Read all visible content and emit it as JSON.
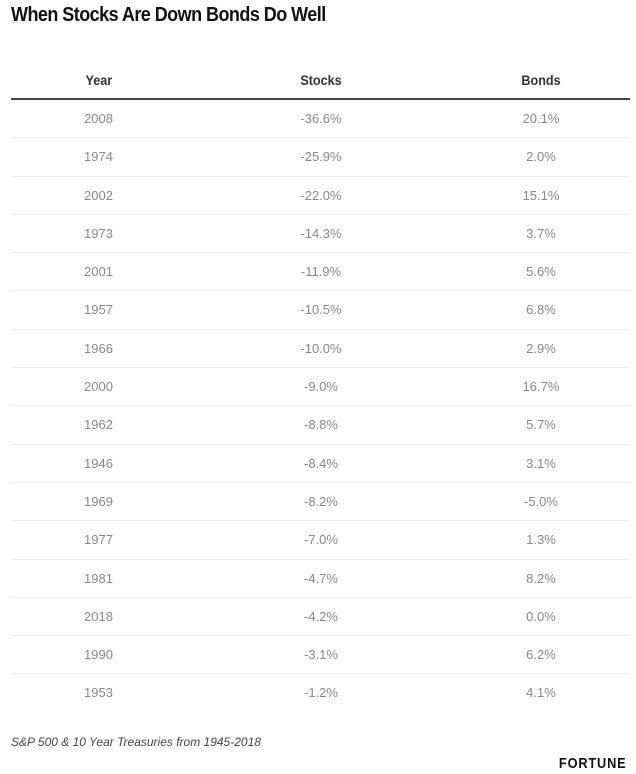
{
  "chart_data": {
    "type": "table",
    "title": "When Stocks Are Down Bonds Do Well",
    "columns": [
      "Year",
      "Stocks",
      "Bonds"
    ],
    "rows": [
      [
        "2008",
        "-36.6%",
        "20.1%"
      ],
      [
        "1974",
        "-25.9%",
        "2.0%"
      ],
      [
        "2002",
        "-22.0%",
        "15.1%"
      ],
      [
        "1973",
        "-14.3%",
        "3.7%"
      ],
      [
        "2001",
        "-11.9%",
        "5.6%"
      ],
      [
        "1957",
        "-10.5%",
        "6.8%"
      ],
      [
        "1966",
        "-10.0%",
        "2.9%"
      ],
      [
        "2000",
        "-9.0%",
        "16.7%"
      ],
      [
        "1962",
        "-8.8%",
        "5.7%"
      ],
      [
        "1946",
        "-8.4%",
        "3.1%"
      ],
      [
        "1969",
        "-8.2%",
        "-5.0%"
      ],
      [
        "1977",
        "-7.0%",
        "1.3%"
      ],
      [
        "1981",
        "-4.7%",
        "8.2%"
      ],
      [
        "2018",
        "-4.2%",
        "0.0%"
      ],
      [
        "1990",
        "-3.1%",
        "6.2%"
      ],
      [
        "1953",
        "-1.2%",
        "4.1%"
      ]
    ],
    "footnote": "S&P 500 & 10 Year Treasuries from 1945-2018",
    "source_logo": "FORTUNE"
  }
}
